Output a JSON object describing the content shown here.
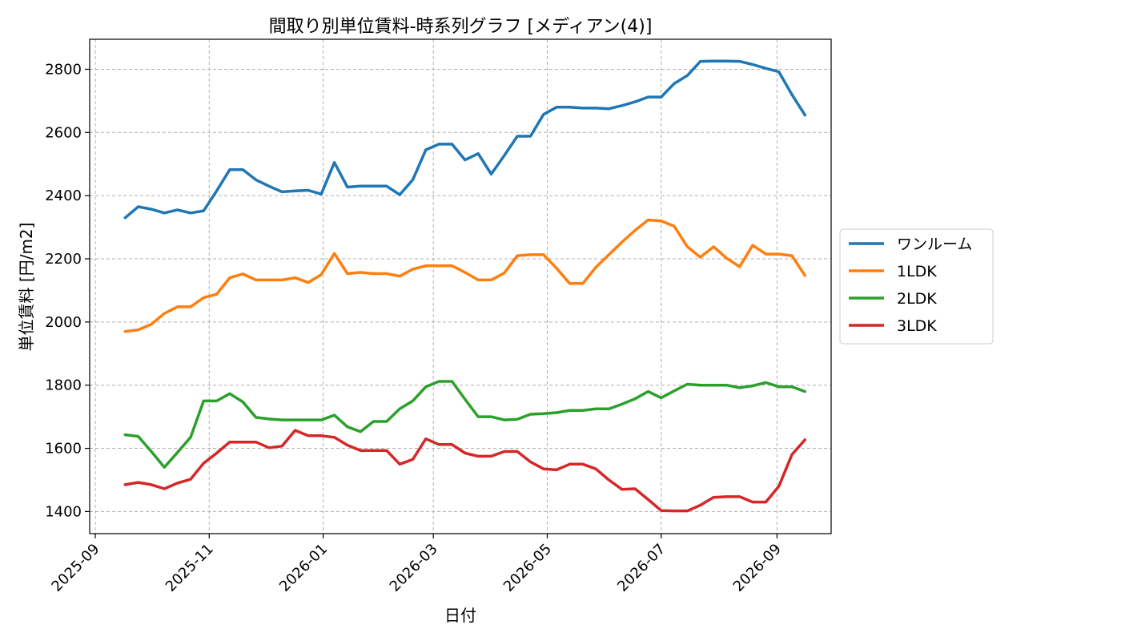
{
  "chart_data": {
    "type": "line",
    "title": "間取り別単位賃料-時系列グラフ [メディアン(4)]",
    "xlabel": "日付",
    "ylabel": "単位賃料 [円/m2]",
    "ylim": [
      1330,
      2895
    ],
    "yticks": [
      1400,
      1600,
      1800,
      2000,
      2200,
      2400,
      2600,
      2800
    ],
    "xlim": [
      "2025-08-29",
      "2026-09-30"
    ],
    "xticks": [
      "2025-09-01",
      "2025-11-01",
      "2026-01-01",
      "2026-03-01",
      "2026-05-01",
      "2026-07-01",
      "2026-09-01"
    ],
    "xtick_labels": [
      "2025-09",
      "2025-11",
      "2026-01",
      "2026-03",
      "2026-05",
      "2026-07",
      "2026-09"
    ],
    "grid": true,
    "legend_position": "center-right",
    "x": [
      "2025-09-17",
      "2025-09-24",
      "2025-10-01",
      "2025-10-08",
      "2025-10-15",
      "2025-10-22",
      "2025-10-29",
      "2025-11-05",
      "2025-11-12",
      "2025-11-19",
      "2025-11-26",
      "2025-12-03",
      "2025-12-10",
      "2025-12-17",
      "2025-12-24",
      "2025-12-31",
      "2026-01-07",
      "2026-01-14",
      "2026-01-21",
      "2026-01-28",
      "2026-02-04",
      "2026-02-11",
      "2026-02-18",
      "2026-02-25",
      "2026-03-04",
      "2026-03-11",
      "2026-03-18",
      "2026-03-25",
      "2026-04-01",
      "2026-04-08",
      "2026-04-15",
      "2026-04-22",
      "2026-04-29",
      "2026-05-06",
      "2026-05-13",
      "2026-05-20",
      "2026-05-27",
      "2026-06-03",
      "2026-06-10",
      "2026-06-17",
      "2026-06-24",
      "2026-07-01",
      "2026-07-08",
      "2026-07-15",
      "2026-07-22",
      "2026-07-29",
      "2026-08-05",
      "2026-08-12",
      "2026-08-19",
      "2026-08-26",
      "2026-09-02",
      "2026-09-09",
      "2026-09-16"
    ],
    "series": [
      {
        "name": "ワンルーム",
        "color": "#1f77b4",
        "values": [
          2330,
          2365,
          2357,
          2345,
          2355,
          2345,
          2352,
          2415,
          2482,
          2482,
          2450,
          2430,
          2412,
          2415,
          2417,
          2405,
          2505,
          2427,
          2430,
          2430,
          2430,
          2403,
          2450,
          2545,
          2563,
          2563,
          2513,
          2533,
          2468,
          2527,
          2588,
          2588,
          2657,
          2680,
          2680,
          2677,
          2677,
          2675,
          2685,
          2697,
          2712,
          2712,
          2755,
          2780,
          2825,
          2826,
          2826,
          2825,
          2815,
          2803,
          2792,
          2720,
          2655
        ]
      },
      {
        "name": "1LDK",
        "color": "#ff7f0e",
        "values": [
          1970,
          1975,
          1993,
          2027,
          2048,
          2048,
          2077,
          2088,
          2140,
          2152,
          2133,
          2133,
          2133,
          2140,
          2125,
          2150,
          2217,
          2153,
          2157,
          2153,
          2153,
          2145,
          2167,
          2178,
          2178,
          2178,
          2157,
          2133,
          2133,
          2155,
          2210,
          2213,
          2213,
          2170,
          2122,
          2122,
          2173,
          2213,
          2253,
          2290,
          2323,
          2320,
          2303,
          2238,
          2205,
          2238,
          2202,
          2175,
          2243,
          2215,
          2215,
          2210,
          2147
        ]
      },
      {
        "name": "2LDK",
        "color": "#2ca02c",
        "values": [
          1643,
          1638,
          1590,
          1540,
          1587,
          1635,
          1750,
          1750,
          1773,
          1747,
          1698,
          1693,
          1690,
          1690,
          1690,
          1690,
          1705,
          1668,
          1653,
          1685,
          1685,
          1725,
          1750,
          1795,
          1812,
          1812,
          1755,
          1700,
          1700,
          1690,
          1692,
          1708,
          1710,
          1713,
          1720,
          1720,
          1725,
          1725,
          1740,
          1757,
          1780,
          1760,
          1782,
          1803,
          1800,
          1800,
          1800,
          1792,
          1798,
          1808,
          1795,
          1795,
          1780
        ]
      },
      {
        "name": "3LDK",
        "color": "#d62728",
        "values": [
          1485,
          1492,
          1485,
          1472,
          1490,
          1502,
          1553,
          1585,
          1620,
          1620,
          1620,
          1602,
          1607,
          1657,
          1640,
          1640,
          1635,
          1610,
          1593,
          1593,
          1593,
          1550,
          1565,
          1630,
          1612,
          1612,
          1585,
          1575,
          1575,
          1590,
          1590,
          1557,
          1535,
          1532,
          1550,
          1550,
          1535,
          1500,
          1470,
          1472,
          1438,
          1403,
          1402,
          1402,
          1420,
          1445,
          1447,
          1447,
          1430,
          1430,
          1480,
          1580,
          1627
        ]
      }
    ]
  }
}
